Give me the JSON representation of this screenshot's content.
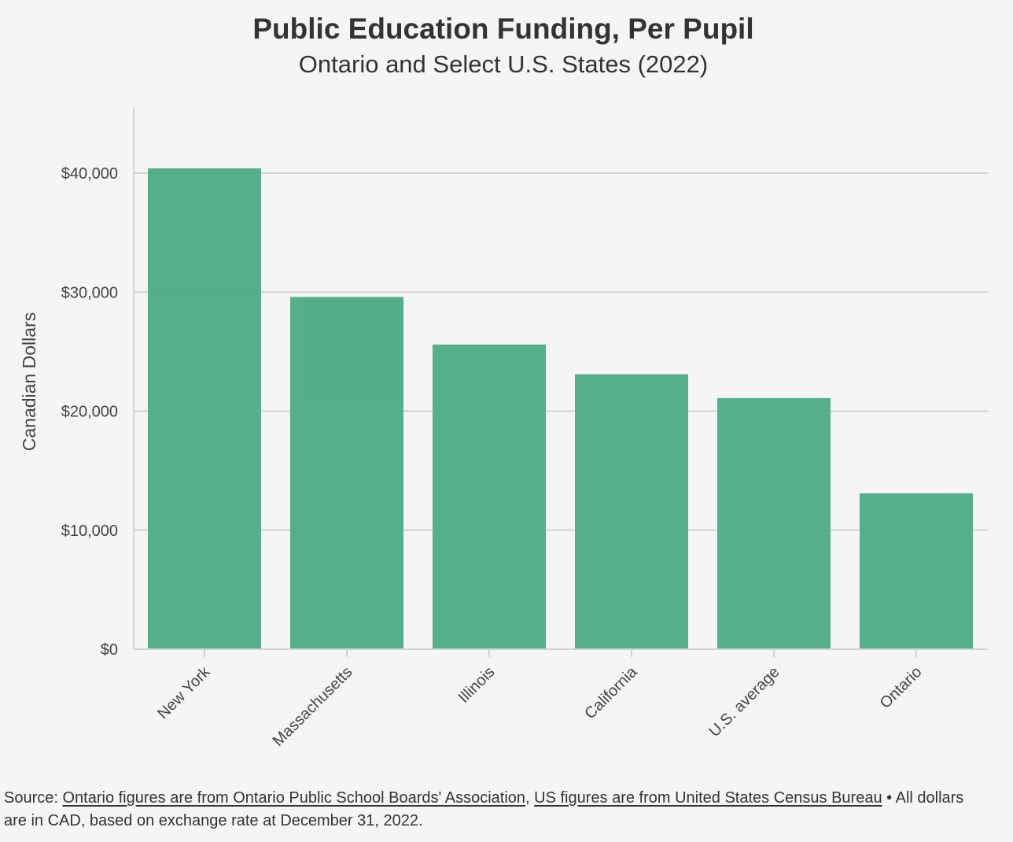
{
  "chart_data": {
    "type": "bar",
    "title": "Public Education Funding, Per Pupil",
    "subtitle": "Ontario and Select U.S. States (2022)",
    "xlabel": "",
    "ylabel": "Canadian Dollars",
    "categories": [
      "New York",
      "Massachusetts",
      "Illinois",
      "California",
      "U.S. average",
      "Ontario"
    ],
    "values": [
      40400,
      29600,
      25600,
      23100,
      21100,
      13100
    ],
    "ylim": [
      0,
      45000
    ],
    "yticks": [
      0,
      10000,
      20000,
      30000,
      40000
    ],
    "ytick_labels": [
      "$0",
      "$10,000",
      "$20,000",
      "$30,000",
      "$40,000"
    ],
    "grid": true,
    "bar_color": "#4caa86",
    "grid_color": "#d3d3d3"
  },
  "footer": {
    "source_prefix": "Source: ",
    "link1": "Ontario figures are from Ontario Public School Boards' Association",
    "separator": ", ",
    "link2": "US figures are from United States Census Bureau",
    "note": " • All dollars are in CAD, based on exchange rate at December 31, 2022."
  }
}
